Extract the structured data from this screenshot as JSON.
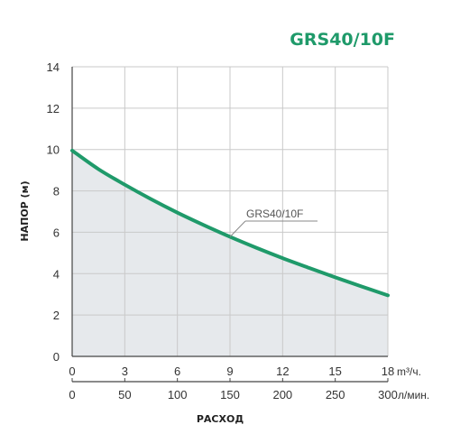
{
  "chart_data": {
    "type": "area",
    "title": "GRS40/10F",
    "xlabel": "РАСХОД",
    "ylabel": "НАПОР (м)",
    "x_unit_primary": "m³/ч.",
    "x_unit_secondary": "л/мин.",
    "x_ticks_primary": [
      "0",
      "3",
      "6",
      "9",
      "12",
      "15",
      "18"
    ],
    "x_ticks_secondary": [
      "0",
      "50",
      "100",
      "150",
      "200",
      "250",
      "300"
    ],
    "y_ticks": [
      "0",
      "2",
      "4",
      "6",
      "8",
      "10",
      "12",
      "14"
    ],
    "xlim": [
      0,
      18
    ],
    "ylim": [
      0,
      14
    ],
    "grid": true,
    "series": [
      {
        "name": "GRS40/10F",
        "x": [
          0,
          1.5,
          3,
          4.5,
          6,
          7.5,
          9,
          10.5,
          12,
          13.5,
          15,
          16.5,
          18
        ],
        "y": [
          9.95,
          9.05,
          8.3,
          7.6,
          6.95,
          6.35,
          5.78,
          5.25,
          4.75,
          4.28,
          3.82,
          3.38,
          2.95
        ]
      }
    ],
    "colors": {
      "curve": "#1f9a6a",
      "fill": "#e6e9ec",
      "grid": "#c9c9c9",
      "title": "#1f9a6a"
    }
  }
}
